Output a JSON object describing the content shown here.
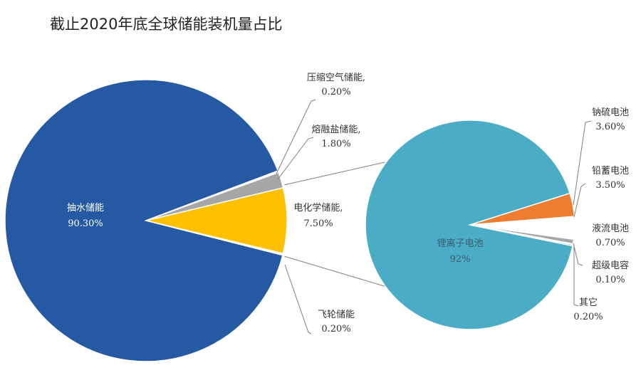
{
  "chart_data": {
    "type": "pie",
    "title": "截止2020年底全球储能装机量占比",
    "main_pie": {
      "slices": [
        {
          "name": "抽水储能",
          "value": 90.3,
          "label": "90.30%",
          "color": "#2559a4"
        },
        {
          "name": "压缩空气储能,",
          "value": 0.2,
          "label": "0.20%",
          "color": "#ffffff"
        },
        {
          "name": "熔融盐储能,",
          "value": 1.8,
          "label": "1.80%",
          "color": "#a6a6a6"
        },
        {
          "name": "电化学储能,",
          "value": 7.5,
          "label": "7.50%",
          "color": "#ffc000"
        },
        {
          "name": "飞轮储能",
          "value": 0.2,
          "label": "0.20%",
          "color": "#ffffff"
        }
      ]
    },
    "sub_pie": {
      "parent": "电化学储能,",
      "slices": [
        {
          "name": "锂离子电池",
          "value": 92,
          "label": "92%",
          "color": "#4bacc6"
        },
        {
          "name": "钠硫电池",
          "value": 3.6,
          "label": "3.60%",
          "color": "#ed7d31"
        },
        {
          "name": "铅蓄电池",
          "value": 3.5,
          "label": "3.50%",
          "color": "#ffffff"
        },
        {
          "name": "液流电池",
          "value": 0.7,
          "label": "0.70%",
          "color": "#a6a6a6"
        },
        {
          "name": "超级电容",
          "value": 0.1,
          "label": "0.10%",
          "color": "#ffc000"
        },
        {
          "name": "其它",
          "value": 0.2,
          "label": "0.20%",
          "color": "#5b9bd5"
        }
      ]
    }
  }
}
